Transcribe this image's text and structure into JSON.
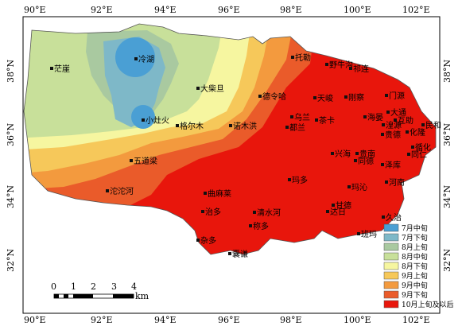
{
  "map": {
    "top_lon_labels": [
      "90°E",
      "92°E",
      "94°E",
      "96°E",
      "98°E",
      "100°E",
      "102°E"
    ],
    "bottom_lon_labels": [
      "90°E",
      "92°E",
      "94°E",
      "96°E",
      "98°E",
      "100°E",
      "102°E"
    ],
    "left_lat_labels": [
      "38°N",
      "36°N",
      "34°N",
      "32°N"
    ],
    "right_lat_labels": [
      "38°N",
      "36°N",
      "34°N",
      "32°N"
    ],
    "zone_colors": {
      "jul_mid": "#4a9fd4",
      "jul_late": "#7eb8c8",
      "aug_early": "#a9c9a0",
      "aug_mid": "#c8e09a",
      "aug_late": "#f6f6a0",
      "sep_early": "#f6c85a",
      "sep_mid": "#f39a3e",
      "sep_late": "#ea5b2a",
      "oct_early_later": "#e8160c"
    }
  },
  "cities": [
    {
      "name": "茫崖"
    },
    {
      "name": "冷湖"
    },
    {
      "name": "大柴旦"
    },
    {
      "name": "小灶火"
    },
    {
      "name": "格尔木"
    },
    {
      "name": "诺木洪"
    },
    {
      "name": "德令哈"
    },
    {
      "name": "托勒"
    },
    {
      "name": "野牛沟"
    },
    {
      "name": "祁连"
    },
    {
      "name": "天峻"
    },
    {
      "name": "刚察"
    },
    {
      "name": "门源"
    },
    {
      "name": "乌兰"
    },
    {
      "name": "茶卡"
    },
    {
      "name": "都兰"
    },
    {
      "name": "海晏"
    },
    {
      "name": "大通"
    },
    {
      "name": "互助"
    },
    {
      "name": "湟源"
    },
    {
      "name": "民和"
    },
    {
      "name": "化隆"
    },
    {
      "name": "循化"
    },
    {
      "name": "贵德"
    },
    {
      "name": "兴海"
    },
    {
      "name": "贵南"
    },
    {
      "name": "同德"
    },
    {
      "name": "泽库"
    },
    {
      "name": "同仁"
    },
    {
      "name": "五道梁"
    },
    {
      "name": "沱沱河"
    },
    {
      "name": "玛多"
    },
    {
      "name": "曲麻莱"
    },
    {
      "name": "治多"
    },
    {
      "name": "清水河"
    },
    {
      "name": "称多"
    },
    {
      "name": "玛沁"
    },
    {
      "name": "河南"
    },
    {
      "name": "甘德"
    },
    {
      "name": "达日"
    },
    {
      "name": "久治"
    },
    {
      "name": "班玛"
    },
    {
      "name": "杂多"
    },
    {
      "name": "囊谦"
    }
  ],
  "legend": {
    "items": [
      {
        "label": "7月中旬",
        "color": "#4a9fd4"
      },
      {
        "label": "7月下旬",
        "color": "#7eb8c8"
      },
      {
        "label": "8月上旬",
        "color": "#a9c9a0"
      },
      {
        "label": "8月中旬",
        "color": "#c8e09a"
      },
      {
        "label": "8月下旬",
        "color": "#f6f6a0"
      },
      {
        "label": "9月上旬",
        "color": "#f6c85a"
      },
      {
        "label": "9月中旬",
        "color": "#f39a3e"
      },
      {
        "label": "9月下旬",
        "color": "#ea5b2a"
      },
      {
        "label": "10月上旬及以后",
        "color": "#e8160c"
      }
    ]
  },
  "scale_bar": {
    "ticks": [
      "0",
      "1",
      "2",
      "3",
      "4"
    ],
    "unit": "km"
  }
}
